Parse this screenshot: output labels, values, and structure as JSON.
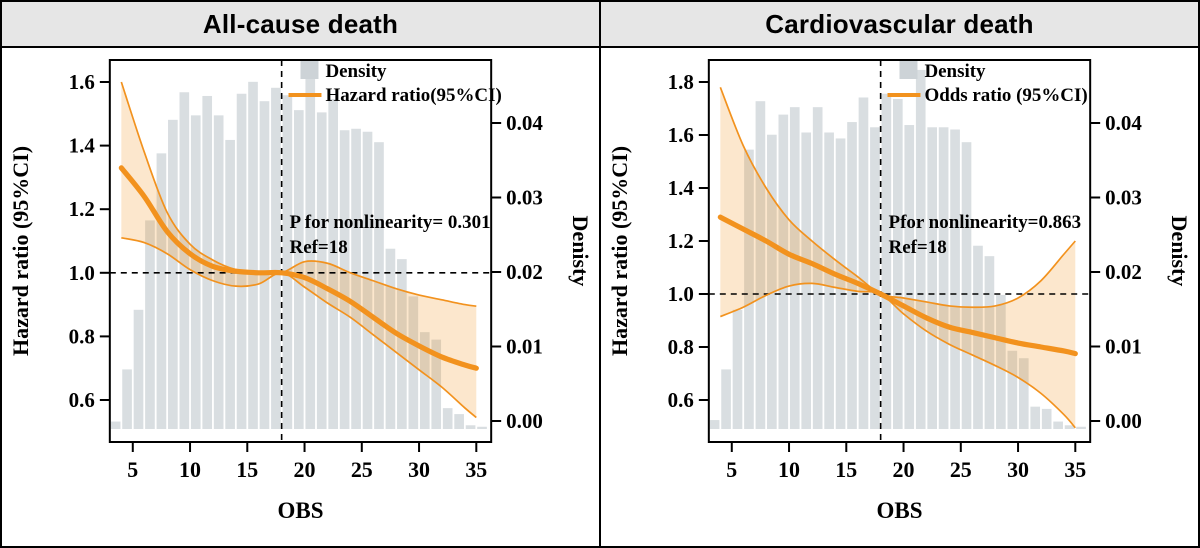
{
  "colors": {
    "curve": "#F2921E",
    "band_fill": "rgba(242,146,28,0.22)",
    "bar_fill": "#D9DEE1",
    "legend_swatch": "#CDD3D7",
    "header_bg": "#E6E6E6",
    "frame": "#000000"
  },
  "chart_data": [
    {
      "type": "line",
      "title": "All-cause death",
      "x_label": "OBS",
      "y_left_label": "Hazard ratio (95%CI)",
      "y_right_label": "Denisty",
      "x_ticks": [
        5,
        10,
        15,
        20,
        25,
        30,
        35
      ],
      "y_left_ticks": [
        "1.6",
        "1.4",
        "1.2",
        "1.0",
        "0.8",
        "0.6"
      ],
      "y_left_domain": [
        0.6,
        1.6
      ],
      "y_right_ticks": [
        "0.00",
        "0.01",
        "0.02",
        "0.03",
        "0.04"
      ],
      "legend": {
        "density_label": "Density",
        "ratio_label": "Hazard ratio(95%CI)"
      },
      "annotations": {
        "p_nonlinearity": "P for nonlinearity= 0.301",
        "ref": "Ref=18"
      },
      "ref_line": {
        "x": 18,
        "y": 1.0
      },
      "histogram": {
        "bin_start": 3,
        "bin_width": 1,
        "densities": [
          0.001,
          0.008,
          0.016,
          0.028,
          0.037,
          0.0415,
          0.0452,
          0.0421,
          0.0447,
          0.0421,
          0.0388,
          0.045,
          0.0466,
          0.044,
          0.0458,
          0.0448,
          0.0428,
          0.048,
          0.0425,
          0.0443,
          0.0401,
          0.0403,
          0.0399,
          0.0385,
          0.0242,
          0.0228,
          0.0178,
          0.013,
          0.012,
          0.0028,
          0.002,
          0.0005,
          0.0003
        ]
      },
      "curve": {
        "x": [
          4,
          6,
          8,
          10,
          12,
          14,
          16,
          18,
          20,
          22,
          24,
          26,
          28,
          30,
          32,
          34,
          35
        ],
        "mean": [
          1.33,
          1.24,
          1.13,
          1.06,
          1.02,
          1.005,
          1.0,
          1.0,
          0.985,
          0.95,
          0.91,
          0.86,
          0.81,
          0.77,
          0.735,
          0.71,
          0.7
        ],
        "upper": [
          1.6,
          1.38,
          1.19,
          1.09,
          1.04,
          1.01,
          1.002,
          1.0,
          1.035,
          1.03,
          1.0,
          0.975,
          0.95,
          0.93,
          0.915,
          0.9,
          0.895
        ],
        "lower": [
          1.11,
          1.095,
          1.06,
          1.01,
          0.975,
          0.958,
          0.965,
          1.0,
          0.955,
          0.905,
          0.86,
          0.805,
          0.75,
          0.695,
          0.64,
          0.575,
          0.545
        ]
      }
    },
    {
      "type": "line",
      "title": "Cardiovascular death",
      "x_label": "OBS",
      "y_left_label": "Hazard ratio (95%CI)",
      "y_right_label": "Denisty",
      "x_ticks": [
        5,
        10,
        15,
        20,
        25,
        30,
        35
      ],
      "y_left_ticks": [
        "1.8",
        "1.6",
        "1.4",
        "1.2",
        "1.0",
        "0.8",
        "0.6"
      ],
      "y_left_domain": [
        0.6,
        1.8
      ],
      "y_right_ticks": [
        "0.00",
        "0.01",
        "0.02",
        "0.03",
        "0.04"
      ],
      "legend": {
        "density_label": "Density",
        "ratio_label": "Odds ratio (95%CI)"
      },
      "annotations": {
        "p_nonlinearity": "Pfor nonlinearity=0.863",
        "ref": "Ref=18"
      },
      "ref_line": {
        "x": 18,
        "y": 1.0
      },
      "histogram": {
        "bin_start": 3,
        "bin_width": 1,
        "densities": [
          0.0012,
          0.008,
          0.016,
          0.0375,
          0.044,
          0.0395,
          0.0422,
          0.0432,
          0.0398,
          0.0432,
          0.0398,
          0.039,
          0.0412,
          0.0445,
          0.0405,
          0.045,
          0.0443,
          0.0408,
          0.0482,
          0.0405,
          0.0405,
          0.0402,
          0.0385,
          0.0246,
          0.0232,
          0.018,
          0.0105,
          0.0095,
          0.003,
          0.0027,
          0.001,
          0.0005,
          0.0003
        ]
      },
      "curve": {
        "x": [
          4,
          6,
          8,
          10,
          12,
          14,
          16,
          18,
          20,
          22,
          24,
          26,
          28,
          30,
          32,
          34,
          35
        ],
        "mean": [
          1.29,
          1.245,
          1.2,
          1.15,
          1.115,
          1.075,
          1.04,
          1.0,
          0.955,
          0.91,
          0.875,
          0.855,
          0.835,
          0.815,
          0.8,
          0.785,
          0.775
        ],
        "upper": [
          1.78,
          1.56,
          1.4,
          1.28,
          1.2,
          1.13,
          1.065,
          1.0,
          0.985,
          0.97,
          0.955,
          0.95,
          0.955,
          0.985,
          1.05,
          1.15,
          1.2
        ],
        "lower": [
          0.915,
          0.95,
          0.995,
          1.03,
          1.04,
          1.025,
          1.01,
          1.0,
          0.925,
          0.86,
          0.81,
          0.77,
          0.73,
          0.685,
          0.625,
          0.545,
          0.495
        ]
      }
    }
  ]
}
